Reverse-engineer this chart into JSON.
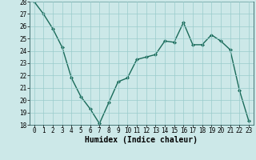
{
  "x": [
    0,
    1,
    2,
    3,
    4,
    5,
    6,
    7,
    8,
    9,
    10,
    11,
    12,
    13,
    14,
    15,
    16,
    17,
    18,
    19,
    20,
    21,
    22,
    23
  ],
  "y": [
    28.0,
    27.0,
    25.8,
    24.3,
    21.8,
    20.3,
    19.3,
    18.1,
    19.8,
    21.5,
    21.8,
    23.3,
    23.5,
    23.7,
    24.8,
    24.7,
    26.3,
    24.5,
    24.5,
    25.3,
    24.8,
    24.1,
    20.8,
    18.3
  ],
  "line_color": "#1a6b5a",
  "marker": "D",
  "marker_size": 2.0,
  "bg_color": "#cce8e8",
  "grid_color": "#99cccc",
  "xlabel": "Humidex (Indice chaleur)",
  "ylim": [
    18,
    28
  ],
  "xlim_min": -0.5,
  "xlim_max": 23.5,
  "yticks": [
    18,
    19,
    20,
    21,
    22,
    23,
    24,
    25,
    26,
    27,
    28
  ],
  "xticks": [
    0,
    1,
    2,
    3,
    4,
    5,
    6,
    7,
    8,
    9,
    10,
    11,
    12,
    13,
    14,
    15,
    16,
    17,
    18,
    19,
    20,
    21,
    22,
    23
  ],
  "tick_fontsize": 5.5,
  "label_fontsize": 7.0,
  "linewidth": 1.0,
  "spine_color": "#336666"
}
